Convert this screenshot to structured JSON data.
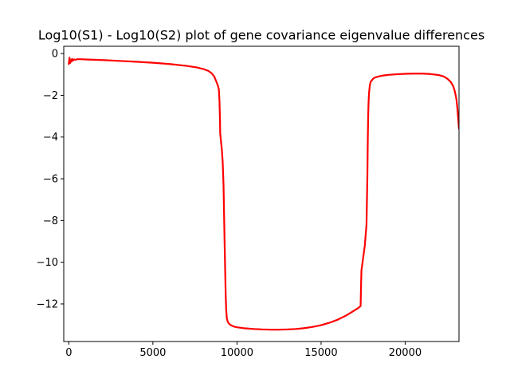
{
  "chart_data": {
    "type": "line",
    "title": "Log10(S1) - Log10(S2) plot of gene covariance eigenvalue differences",
    "xlabel": "",
    "ylabel": "",
    "xlim": [
      -300,
      23200
    ],
    "ylim": [
      -13.8,
      0.35
    ],
    "x_ticks": [
      0,
      5000,
      10000,
      15000,
      20000
    ],
    "x_tick_labels": [
      "0",
      "5000",
      "10000",
      "15000",
      "20000"
    ],
    "y_ticks": [
      0,
      -2,
      -4,
      -6,
      -8,
      -10,
      -12
    ],
    "y_tick_labels": [
      "0",
      "−2",
      "−4",
      "−6",
      "−8",
      "−10",
      "−12"
    ],
    "grid": false,
    "legend": "none",
    "series": [
      {
        "color": "#ff0000",
        "x": [
          0,
          40,
          80,
          120,
          160,
          200,
          260,
          320,
          400,
          500,
          700,
          1000,
          2000,
          3000,
          4000,
          5000,
          6000,
          7000,
          7600,
          8000,
          8300,
          8500,
          8650,
          8750,
          8850,
          8920,
          8960,
          8990,
          9000,
          9050,
          9100,
          9150,
          9200,
          9250,
          9300,
          9330,
          9360,
          9400,
          9450,
          9500,
          9600,
          9800,
          10000,
          10500,
          11000,
          11500,
          12000,
          12500,
          13000,
          13500,
          14000,
          14500,
          15000,
          15500,
          16000,
          16500,
          17000,
          17200,
          17350,
          17380,
          17400,
          17450,
          17500,
          17600,
          17700,
          17750,
          17780,
          17800,
          17820,
          17850,
          17900,
          17950,
          18000,
          18050,
          18100,
          18200,
          18400,
          18700,
          19000,
          19500,
          20000,
          20500,
          21000,
          21500,
          22000,
          22300,
          22500,
          22700,
          22850,
          22950,
          23050,
          23100,
          23150,
          23200
        ],
        "y": [
          -0.5,
          -0.2,
          -0.45,
          -0.3,
          -0.38,
          -0.25,
          -0.33,
          -0.28,
          -0.3,
          -0.27,
          -0.27,
          -0.28,
          -0.31,
          -0.35,
          -0.39,
          -0.44,
          -0.5,
          -0.59,
          -0.66,
          -0.74,
          -0.83,
          -0.95,
          -1.1,
          -1.3,
          -1.5,
          -1.7,
          -2.3,
          -3.2,
          -3.8,
          -4.2,
          -4.6,
          -5.2,
          -6.3,
          -8.5,
          -10.5,
          -11.6,
          -12.3,
          -12.7,
          -12.85,
          -12.92,
          -13.0,
          -13.08,
          -13.12,
          -13.17,
          -13.2,
          -13.22,
          -13.23,
          -13.23,
          -13.22,
          -13.2,
          -13.16,
          -13.1,
          -13.02,
          -12.9,
          -12.75,
          -12.55,
          -12.3,
          -12.2,
          -12.1,
          -11.0,
          -10.4,
          -10.1,
          -9.8,
          -9.2,
          -8.2,
          -6.0,
          -4.0,
          -3.0,
          -2.4,
          -1.9,
          -1.5,
          -1.35,
          -1.3,
          -1.25,
          -1.2,
          -1.15,
          -1.1,
          -1.05,
          -1.02,
          -0.99,
          -0.97,
          -0.96,
          -0.96,
          -0.98,
          -1.03,
          -1.1,
          -1.2,
          -1.35,
          -1.55,
          -1.8,
          -2.2,
          -2.6,
          -3.1,
          -3.6
        ]
      }
    ]
  }
}
